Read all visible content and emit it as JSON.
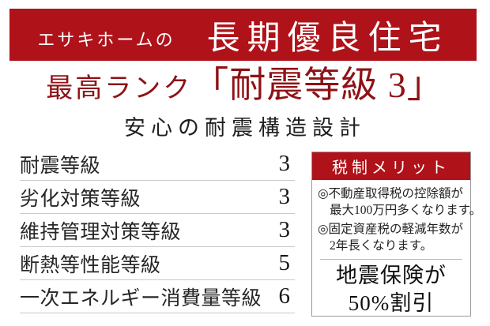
{
  "colors": {
    "banner_red": "#b0121a",
    "headline_red": "#8e1216",
    "text_dark": "#262626",
    "divider_gray": "#cbcbcb",
    "box_border_gray": "#9b9b9b"
  },
  "banner": {
    "prefix": "エサキホームの",
    "title": "長期優良住宅"
  },
  "headline": {
    "small": "最高ランク",
    "large": "「耐震等級 3」"
  },
  "subtitle": "安心の耐震構造設計",
  "ratings_table": {
    "rows": [
      {
        "label": "耐震等級",
        "value": "3"
      },
      {
        "label": "劣化対策等級",
        "value": "3"
      },
      {
        "label": "維持管理対策等級",
        "value": "3"
      },
      {
        "label": "断熱等性能等級",
        "value": "5"
      },
      {
        "label": "一次エネルギー消費量等級",
        "value": "6"
      }
    ]
  },
  "tax_box": {
    "title": "税制メリット",
    "bullets": [
      {
        "line1": "◎不動産取得税の控除額が",
        "line2": "最大100万円多くなります。"
      },
      {
        "line1": "◎固定資産税の軽減年数が",
        "line2": "2年長くなります。"
      }
    ],
    "highlight_line1": "地震保険が",
    "highlight_line2": "50%割引"
  }
}
